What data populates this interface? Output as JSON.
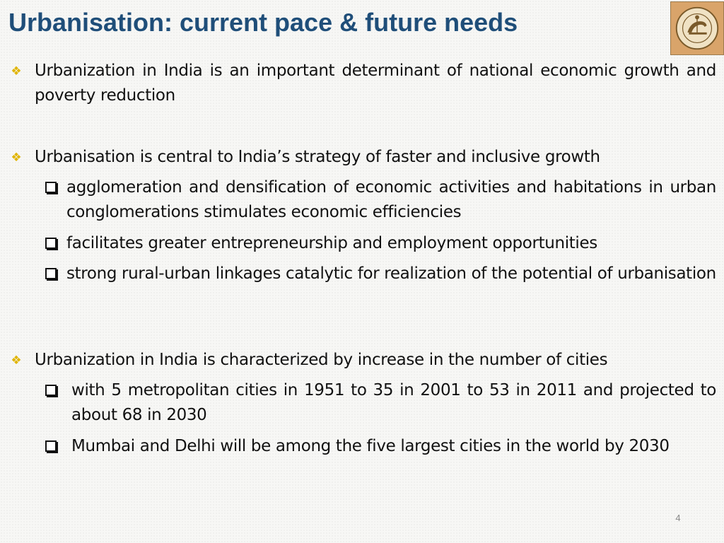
{
  "slide": {
    "title": "Urbanisation: current pace & future needs",
    "page_number": "4",
    "logo_name": "reserve-bank-of-india-emblem",
    "bullets": [
      {
        "text": "Urbanization in India is an important determinant of national economic growth and poverty reduction",
        "subpoints": []
      },
      {
        "text": "Urbanisation is central to India’s strategy of faster and inclusive growth",
        "subpoints": [
          "agglomeration and densification of economic activities and habitations in urban conglomerations stimulates economic efficiencies",
          "facilitates greater entrepreneurship and employment opportunities",
          "strong rural-urban linkages catalytic for realization of the potential of urbanisation"
        ]
      },
      {
        "text": "Urbanization in India is characterized by increase in the number of cities",
        "subpoints": [
          "with 5 metropolitan cities in 1951 to 35 in 2001 to 53 in 2011 and projected to about 68 in 2030",
          "Mumbai and Delhi will be among the five largest cities in the world by 2030"
        ]
      }
    ]
  },
  "colors": {
    "title": "#1f4e79",
    "diamond_bullet": "#e0b400",
    "background": "#f7f7f5"
  },
  "icons": {
    "level1_bullet": "four-diamond-bullet-icon",
    "level2_bullet": "checkbox-square-bullet-icon"
  }
}
